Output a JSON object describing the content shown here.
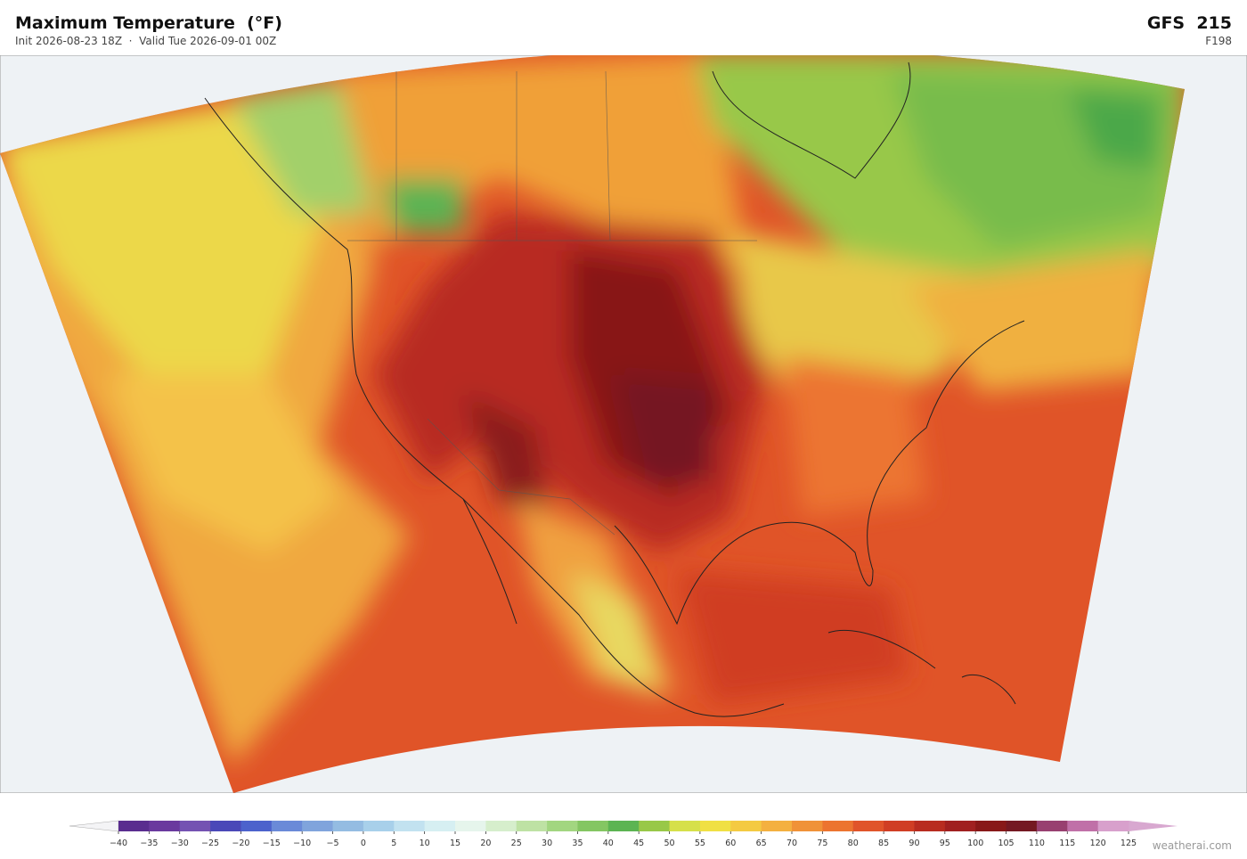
{
  "header": {
    "title": "Maximum Temperature  (°F)",
    "subtitle": "Init 2026-08-23 18Z  ·  Valid Tue 2026-09-01 00Z",
    "model": "GFS  215",
    "forecast_hour": "F198"
  },
  "colorbar": {
    "ticks": [
      {
        "value": -40,
        "label": "−40"
      },
      {
        "value": -35,
        "label": "−35"
      },
      {
        "value": -30,
        "label": "−30"
      },
      {
        "value": -25,
        "label": "−25"
      },
      {
        "value": -20,
        "label": "−20"
      },
      {
        "value": -15,
        "label": "−15"
      },
      {
        "value": -10,
        "label": "−10"
      },
      {
        "value": -5,
        "label": "−5"
      },
      0,
      5,
      10,
      15,
      20,
      25,
      30,
      35,
      40,
      45,
      50,
      55,
      60,
      65,
      70,
      75,
      80,
      85,
      90,
      95,
      100,
      105,
      110,
      115,
      120,
      125
    ],
    "colors": [
      "#5a2d8f",
      "#6a3a9e",
      "#7452b2",
      "#4a48b8",
      "#4c62cc",
      "#6a8ad8",
      "#80a4dc",
      "#94bce2",
      "#a8d0ea",
      "#c2e2f0",
      "#d6eff2",
      "#e6f5ec",
      "#d6eecc",
      "#bee2a4",
      "#a2d680",
      "#84c662",
      "#5cb452",
      "#98c848",
      "#d6e04a",
      "#f0e044",
      "#f4ca42",
      "#f4b040",
      "#f09238",
      "#ec7430",
      "#e0542a",
      "#d03e24",
      "#b82c20",
      "#a02020",
      "#881818",
      "#741822",
      "#984070",
      "#c070a8",
      "#d8a0cc"
    ],
    "under_color": "#f4f4f6",
    "over_color": "#d8a8d0"
  },
  "footer": {
    "credit": "weatherai.com"
  }
}
